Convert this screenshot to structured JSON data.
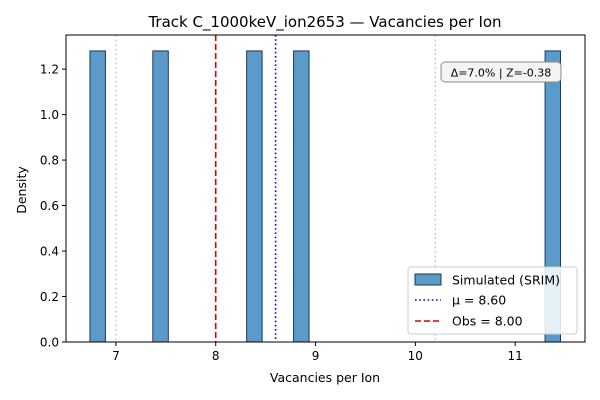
{
  "chart_data": {
    "type": "bar",
    "title": "Track C_1000keV_ion2653 — Vacancies per Ion",
    "xlabel": "Vacancies per Ion",
    "ylabel": "Density",
    "xlim": [
      6.5,
      11.7
    ],
    "ylim": [
      0,
      1.35
    ],
    "xticks": [
      7,
      8,
      9,
      10,
      11
    ],
    "yticks": [
      0.0,
      0.2,
      0.4,
      0.6,
      0.8,
      1.0,
      1.2
    ],
    "xtick_labels": [
      "7",
      "8",
      "9",
      "10",
      "11"
    ],
    "ytick_labels": [
      "0.0",
      "0.2",
      "0.4",
      "0.6",
      "0.8",
      "1.0",
      "1.2"
    ],
    "bar_width": 0.155,
    "series": [
      {
        "name": "Simulated (SRIM)",
        "color": "#5b9bc9",
        "bins": [
          {
            "left": 6.74,
            "value": 1.28
          },
          {
            "left": 7.37,
            "value": 1.28
          },
          {
            "left": 8.31,
            "value": 1.28
          },
          {
            "left": 8.78,
            "value": 1.28
          },
          {
            "left": 11.3,
            "value": 1.28
          }
        ]
      }
    ],
    "vlines": [
      {
        "x": 7.0,
        "style": "dotted",
        "color": "#c0c0c0"
      },
      {
        "x": 10.2,
        "style": "dotted",
        "color": "#c0c0c0"
      },
      {
        "x": 8.6,
        "style": "dotted",
        "color": "#0000cc",
        "label": "μ = 8.60"
      },
      {
        "x": 8.0,
        "style": "dashed",
        "color": "#dd0000",
        "label": "Obs = 8.00"
      }
    ],
    "annotation": "Δ=7.0% | Z=-0.38",
    "legend_position": "lower right",
    "grid": false
  }
}
